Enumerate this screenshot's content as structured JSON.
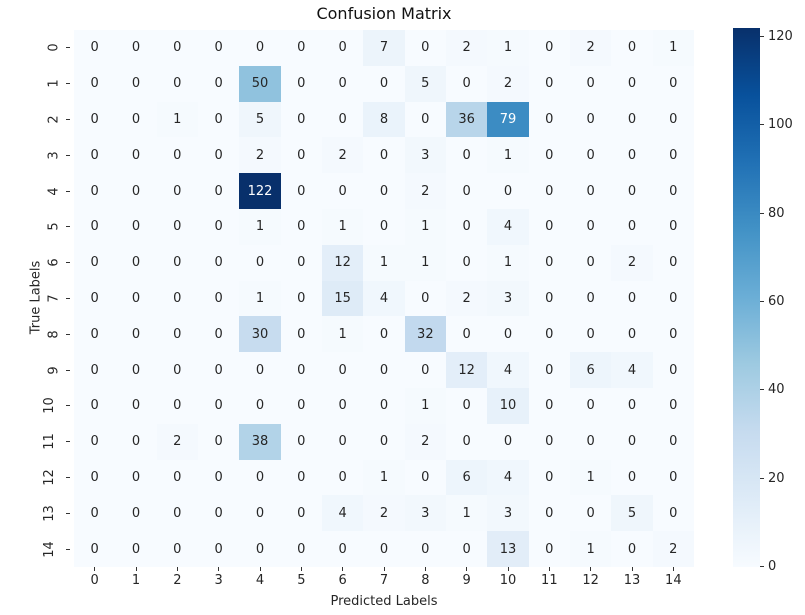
{
  "chart_data": {
    "type": "heatmap",
    "title": "Confusion Matrix",
    "xlabel": "Predicted Labels",
    "ylabel": "True Labels",
    "x_ticks": [
      "0",
      "1",
      "2",
      "3",
      "4",
      "5",
      "6",
      "7",
      "8",
      "9",
      "10",
      "11",
      "12",
      "13",
      "14"
    ],
    "y_ticks": [
      "0",
      "1",
      "2",
      "3",
      "4",
      "5",
      "6",
      "7",
      "8",
      "9",
      "10",
      "11",
      "12",
      "13",
      "14"
    ],
    "colormap": "Blues",
    "vmin": 0,
    "vmax": 122,
    "colorbar_ticks": [
      0,
      20,
      40,
      60,
      80,
      100,
      120
    ],
    "matrix": [
      [
        0,
        0,
        0,
        0,
        0,
        0,
        0,
        7,
        0,
        2,
        1,
        0,
        2,
        0,
        1
      ],
      [
        0,
        0,
        0,
        0,
        50,
        0,
        0,
        0,
        5,
        0,
        2,
        0,
        0,
        0,
        0
      ],
      [
        0,
        0,
        1,
        0,
        5,
        0,
        0,
        8,
        0,
        36,
        79,
        0,
        0,
        0,
        0
      ],
      [
        0,
        0,
        0,
        0,
        2,
        0,
        2,
        0,
        3,
        0,
        1,
        0,
        0,
        0,
        0
      ],
      [
        0,
        0,
        0,
        0,
        122,
        0,
        0,
        0,
        2,
        0,
        0,
        0,
        0,
        0,
        0
      ],
      [
        0,
        0,
        0,
        0,
        1,
        0,
        1,
        0,
        1,
        0,
        4,
        0,
        0,
        0,
        0
      ],
      [
        0,
        0,
        0,
        0,
        0,
        0,
        12,
        1,
        1,
        0,
        1,
        0,
        0,
        2,
        0
      ],
      [
        0,
        0,
        0,
        0,
        1,
        0,
        15,
        4,
        0,
        2,
        3,
        0,
        0,
        0,
        0
      ],
      [
        0,
        0,
        0,
        0,
        30,
        0,
        1,
        0,
        32,
        0,
        0,
        0,
        0,
        0,
        0
      ],
      [
        0,
        0,
        0,
        0,
        0,
        0,
        0,
        0,
        0,
        12,
        4,
        0,
        6,
        4,
        0
      ],
      [
        0,
        0,
        0,
        0,
        0,
        0,
        0,
        0,
        1,
        0,
        10,
        0,
        0,
        0,
        0
      ],
      [
        0,
        0,
        2,
        0,
        38,
        0,
        0,
        0,
        2,
        0,
        0,
        0,
        0,
        0,
        0
      ],
      [
        0,
        0,
        0,
        0,
        0,
        0,
        0,
        1,
        0,
        6,
        4,
        0,
        1,
        0,
        0
      ],
      [
        0,
        0,
        0,
        0,
        0,
        0,
        4,
        2,
        3,
        1,
        3,
        0,
        0,
        5,
        0
      ],
      [
        0,
        0,
        0,
        0,
        0,
        0,
        0,
        0,
        0,
        0,
        13,
        0,
        1,
        0,
        2
      ]
    ]
  }
}
